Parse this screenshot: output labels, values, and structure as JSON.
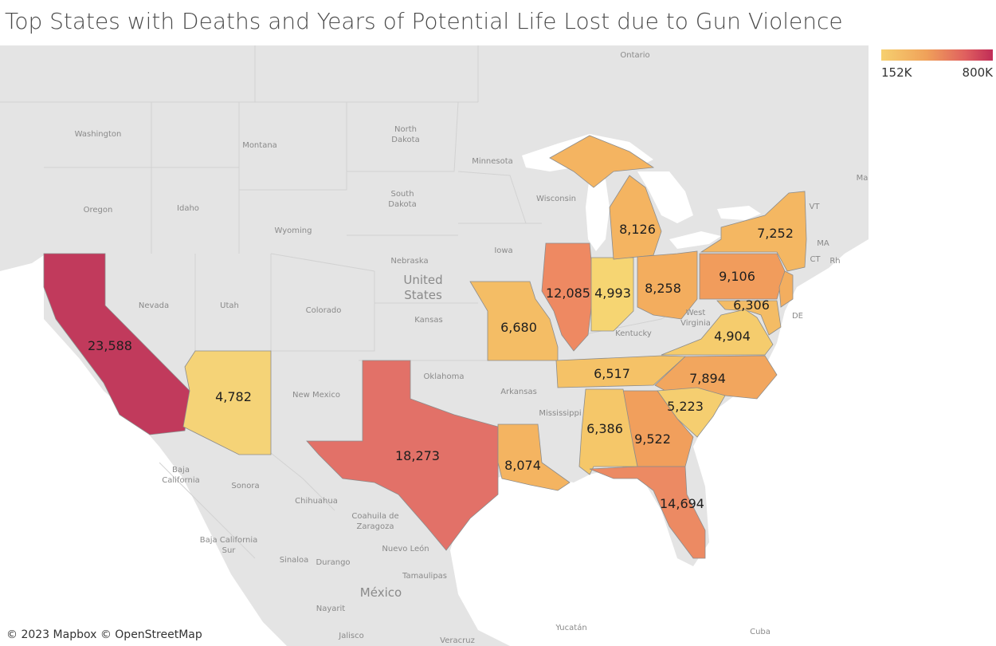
{
  "title": "Top States with Deaths and Years of Potential Life Lost due to Gun Violence",
  "legend": {
    "min_label": "152K",
    "max_label": "800K",
    "color_low": "#f6d06f",
    "color_high": "#c02c57"
  },
  "attribution": "© 2023 Mapbox © OpenStreetMap",
  "states": [
    {
      "key": "ca",
      "deaths": "23,588",
      "color": "#c13a5c"
    },
    {
      "key": "tx",
      "deaths": "18,273",
      "color": "#e27168"
    },
    {
      "key": "fl",
      "deaths": "14,694",
      "color": "#ec8a63"
    },
    {
      "key": "il",
      "deaths": "12,085",
      "color": "#ee8962"
    },
    {
      "key": "ga",
      "deaths": "9,522",
      "color": "#f19f5c"
    },
    {
      "key": "pa",
      "deaths": "9,106",
      "color": "#f19c5c"
    },
    {
      "key": "oh",
      "deaths": "8,258",
      "color": "#f3ad5e"
    },
    {
      "key": "mi",
      "deaths": "8,126",
      "color": "#f4b461"
    },
    {
      "key": "la",
      "deaths": "8,074",
      "color": "#f4b461"
    },
    {
      "key": "nc",
      "deaths": "7,894",
      "color": "#f2a65e"
    },
    {
      "key": "ny",
      "deaths": "7,252",
      "color": "#f4b762"
    },
    {
      "key": "mo",
      "deaths": "6,680",
      "color": "#f4bd65"
    },
    {
      "key": "tn",
      "deaths": "6,517",
      "color": "#f5c267"
    },
    {
      "key": "al",
      "deaths": "6,386",
      "color": "#f5c769"
    },
    {
      "key": "md",
      "deaths": "6,306",
      "color": "#f4bc65"
    },
    {
      "key": "sc",
      "deaths": "5,223",
      "color": "#f5ce70"
    },
    {
      "key": "in",
      "deaths": "4,993",
      "color": "#f6d572"
    },
    {
      "key": "va",
      "deaths": "4,904",
      "color": "#f5cc6d"
    },
    {
      "key": "az",
      "deaths": "4,782",
      "color": "#f5d377"
    },
    {
      "key": "nj",
      "deaths": "",
      "color": "#f3ae5f"
    }
  ],
  "basemap_labels": {
    "ontario": "Ontario",
    "washington": "Washington",
    "montana": "Montana",
    "north_dakota_1": "North",
    "north_dakota_2": "Dakota",
    "minnesota": "Minnesota",
    "south_dakota_1": "South",
    "south_dakota_2": "Dakota",
    "wisconsin": "Wisconsin",
    "oregon": "Oregon",
    "idaho": "Idaho",
    "wyoming": "Wyoming",
    "iowa": "Iowa",
    "nebraska": "Nebraska",
    "united_states_1": "United",
    "united_states_2": "States",
    "nevada": "Nevada",
    "utah": "Utah",
    "colorado": "Colorado",
    "kansas": "Kansas",
    "kentucky": "Kentucky",
    "west_virginia_1": "West",
    "west_virginia_2": "Virginia",
    "oklahoma": "Oklahoma",
    "new_mexico": "New Mexico",
    "arkansas": "Arkansas",
    "mississippi": "Mississippi",
    "baja_california_1": "Baja",
    "baja_california_2": "California",
    "sonora": "Sonora",
    "chihuahua": "Chihuahua",
    "coahuila_1": "Coahuila de",
    "coahuila_2": "Zaragoza",
    "baja_california_sur_1": "Baja California",
    "baja_california_sur_2": "Sur",
    "nuevo_leon": "Nuevo León",
    "sinaloa": "Sinaloa",
    "durango": "Durango",
    "tamaulipas": "Tamaulipas",
    "mexico": "México",
    "nayarit": "Nayarit",
    "jalisco": "Jalisco",
    "veracruz": "Veracruz",
    "yucatan": "Yucatán",
    "cuba": "Cuba",
    "vt": "VT",
    "ma": "MA",
    "ct": "CT",
    "rh": "Rh",
    "de": "DE",
    "ma_edge": "Ma"
  }
}
